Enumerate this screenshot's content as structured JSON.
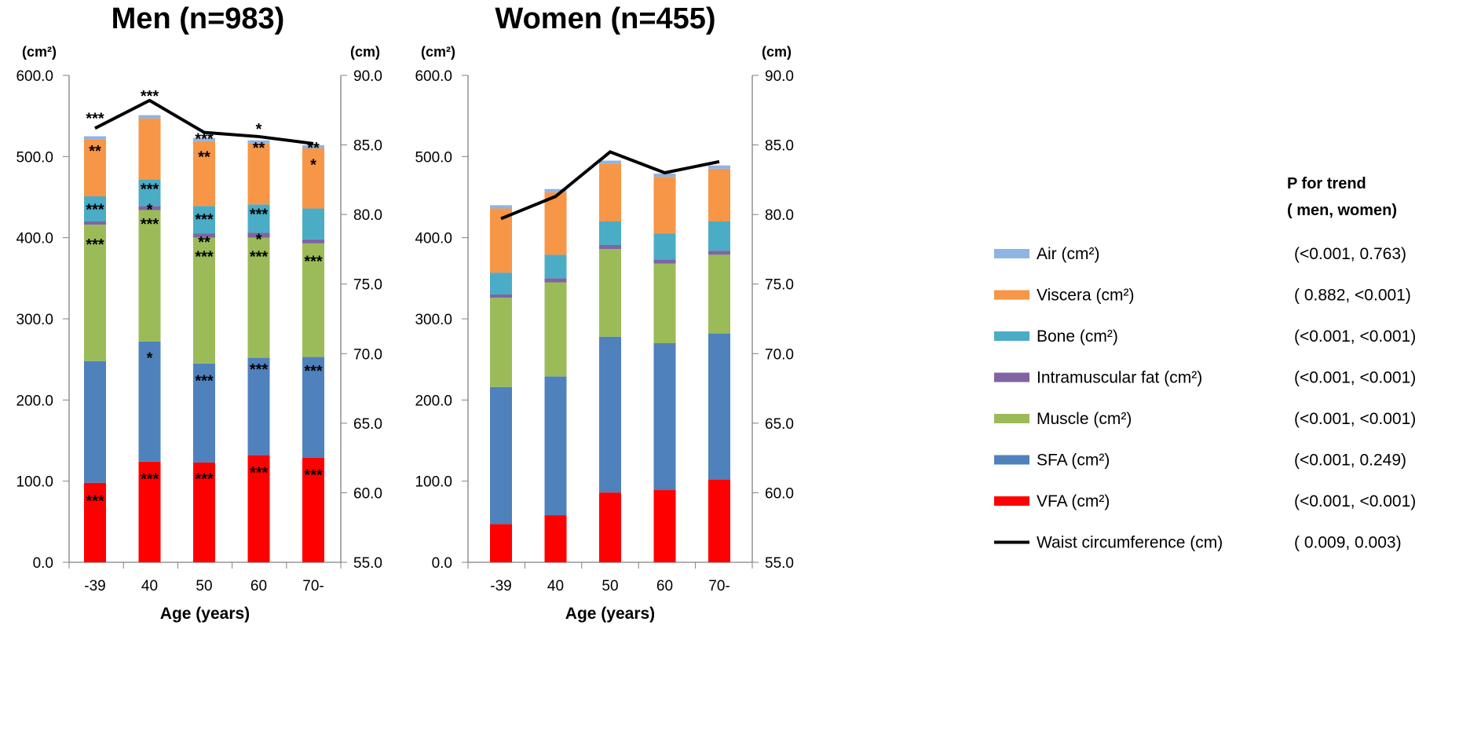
{
  "chart_data": [
    {
      "type": "bar",
      "stacked": true,
      "title": "Men (n=983)",
      "xlabel": "Age (years)",
      "ylabel_left": "(cm²)",
      "ylabel_right": "(cm)",
      "categories": [
        "-39",
        "40",
        "50",
        "60",
        "70-"
      ],
      "ylim_left": [
        0,
        600
      ],
      "yticks_left": [
        "0.0",
        "100.0",
        "200.0",
        "300.0",
        "400.0",
        "500.0",
        "600.0"
      ],
      "ylim_right": [
        55,
        90
      ],
      "yticks_right": [
        "55.0",
        "60.0",
        "65.0",
        "70.0",
        "75.0",
        "80.0",
        "85.0",
        "90.0"
      ],
      "series": [
        {
          "name": "VFA (cm²)",
          "values": [
            98,
            124,
            123,
            132,
            129
          ]
        },
        {
          "name": "SFA (cm²)",
          "values": [
            150,
            148,
            122,
            120,
            124
          ]
        },
        {
          "name": "Muscle (cm²)",
          "values": [
            168,
            162,
            155,
            148,
            140
          ]
        },
        {
          "name": "Intramuscular fat (cm²)",
          "values": [
            4,
            5,
            5,
            6,
            5
          ]
        },
        {
          "name": "Bone (cm²)",
          "values": [
            31,
            33,
            34,
            35,
            38
          ]
        },
        {
          "name": "Viscera (cm²)",
          "values": [
            70,
            75,
            80,
            75,
            74
          ]
        },
        {
          "name": "Air (cm²)",
          "values": [
            4,
            4,
            4,
            4,
            4
          ]
        }
      ],
      "line": {
        "name": "Waist circumference (cm)",
        "values": [
          86.2,
          88.2,
          85.9,
          85.6,
          85.1
        ]
      },
      "annotations": [
        {
          "category": "-39",
          "y": 548,
          "text": "***"
        },
        {
          "category": "-39",
          "y": 508,
          "text": "**"
        },
        {
          "category": "-39",
          "y": 436,
          "text": "***"
        },
        {
          "category": "-39",
          "y": 393,
          "text": "***"
        },
        {
          "category": "-39",
          "y": 77,
          "text": "***"
        },
        {
          "category": "40",
          "y": 576,
          "text": "***"
        },
        {
          "category": "40",
          "y": 461,
          "text": "***"
        },
        {
          "category": "40",
          "y": 436,
          "text": "*"
        },
        {
          "category": "40",
          "y": 418,
          "text": "***"
        },
        {
          "category": "40",
          "y": 253,
          "text": "*"
        },
        {
          "category": "40",
          "y": 104,
          "text": "***"
        },
        {
          "category": "50",
          "y": 523,
          "text": "***"
        },
        {
          "category": "50",
          "y": 501,
          "text": "**"
        },
        {
          "category": "50",
          "y": 424,
          "text": "***"
        },
        {
          "category": "50",
          "y": 396,
          "text": "**"
        },
        {
          "category": "50",
          "y": 378,
          "text": "***"
        },
        {
          "category": "50",
          "y": 225,
          "text": "***"
        },
        {
          "category": "50",
          "y": 104,
          "text": "***"
        },
        {
          "category": "60",
          "y": 535,
          "text": "*"
        },
        {
          "category": "60",
          "y": 512,
          "text": "**"
        },
        {
          "category": "60",
          "y": 430,
          "text": "***"
        },
        {
          "category": "60",
          "y": 399,
          "text": "*"
        },
        {
          "category": "60",
          "y": 378,
          "text": "***"
        },
        {
          "category": "60",
          "y": 239,
          "text": "***"
        },
        {
          "category": "60",
          "y": 112,
          "text": "***"
        },
        {
          "category": "70-",
          "y": 512,
          "text": "**"
        },
        {
          "category": "70-",
          "y": 491,
          "text": "*"
        },
        {
          "category": "70-",
          "y": 372,
          "text": "***"
        },
        {
          "category": "70-",
          "y": 237,
          "text": "***"
        },
        {
          "category": "70-",
          "y": 109,
          "text": "***"
        }
      ]
    },
    {
      "type": "bar",
      "stacked": true,
      "title": "Women (n=455)",
      "xlabel": "Age (years)",
      "ylabel_left": "(cm²)",
      "ylabel_right": "(cm)",
      "categories": [
        "-39",
        "40",
        "50",
        "60",
        "70-"
      ],
      "ylim_left": [
        0,
        600
      ],
      "yticks_left": [
        "0.0",
        "100.0",
        "200.0",
        "300.0",
        "400.0",
        "500.0",
        "600.0"
      ],
      "ylim_right": [
        55,
        90
      ],
      "yticks_right": [
        "55.0",
        "60.0",
        "65.0",
        "70.0",
        "75.0",
        "80.0",
        "85.0",
        "90.0"
      ],
      "series": [
        {
          "name": "VFA (cm²)",
          "values": [
            47,
            58,
            86,
            89,
            102
          ]
        },
        {
          "name": "SFA (cm²)",
          "values": [
            169,
            171,
            192,
            181,
            180
          ]
        },
        {
          "name": "Muscle (cm²)",
          "values": [
            110,
            116,
            108,
            98,
            97
          ]
        },
        {
          "name": "Intramuscular fat (cm²)",
          "values": [
            4,
            5,
            5,
            5,
            5
          ]
        },
        {
          "name": "Bone (cm²)",
          "values": [
            27,
            29,
            29,
            32,
            36
          ]
        },
        {
          "name": "Viscera (cm²)",
          "values": [
            79,
            77,
            71,
            70,
            65
          ]
        },
        {
          "name": "Air (cm²)",
          "values": [
            4,
            4,
            4,
            4,
            4
          ]
        }
      ],
      "line": {
        "name": "Waist circumference (cm)",
        "values": [
          79.7,
          81.3,
          84.5,
          83.0,
          83.8
        ]
      },
      "annotations": []
    }
  ],
  "legend": {
    "header": "P for trend\n( men, women)",
    "items": [
      {
        "label": "Air (cm²)",
        "color": "#8eb4e3",
        "kind": "box",
        "p": "(<0.001,   0.763)"
      },
      {
        "label": "Viscera (cm²)",
        "color": "#f79646",
        "kind": "box",
        "p": "(  0.882, <0.001)"
      },
      {
        "label": "Bone (cm²)",
        "color": "#4bacc6",
        "kind": "box",
        "p": "(<0.001, <0.001)"
      },
      {
        "label": "Intramuscular fat (cm²)",
        "color": "#8064a2",
        "kind": "box",
        "p": "(<0.001, <0.001)"
      },
      {
        "label": "Muscle (cm²)",
        "color": "#9bbb59",
        "kind": "box",
        "p": "(<0.001, <0.001)"
      },
      {
        "label": "SFA (cm²)",
        "color": "#4f81bd",
        "kind": "box",
        "p": "(<0.001,   0.249)"
      },
      {
        "label": "VFA (cm²)",
        "color": "#ff0000",
        "kind": "box",
        "p": "(<0.001, <0.001)"
      },
      {
        "label": "Waist circumference (cm)",
        "color": "#000000",
        "kind": "line",
        "p": "(  0.009,   0.003)"
      }
    ]
  },
  "series_colors": {
    "VFA (cm²)": "#ff0000",
    "SFA (cm²)": "#4f81bd",
    "Muscle (cm²)": "#9bbb59",
    "Intramuscular fat (cm²)": "#8064a2",
    "Bone (cm²)": "#4bacc6",
    "Viscera (cm²)": "#f79646",
    "Air (cm²)": "#8eb4e3",
    "Waist circumference (cm)": "#000000"
  }
}
